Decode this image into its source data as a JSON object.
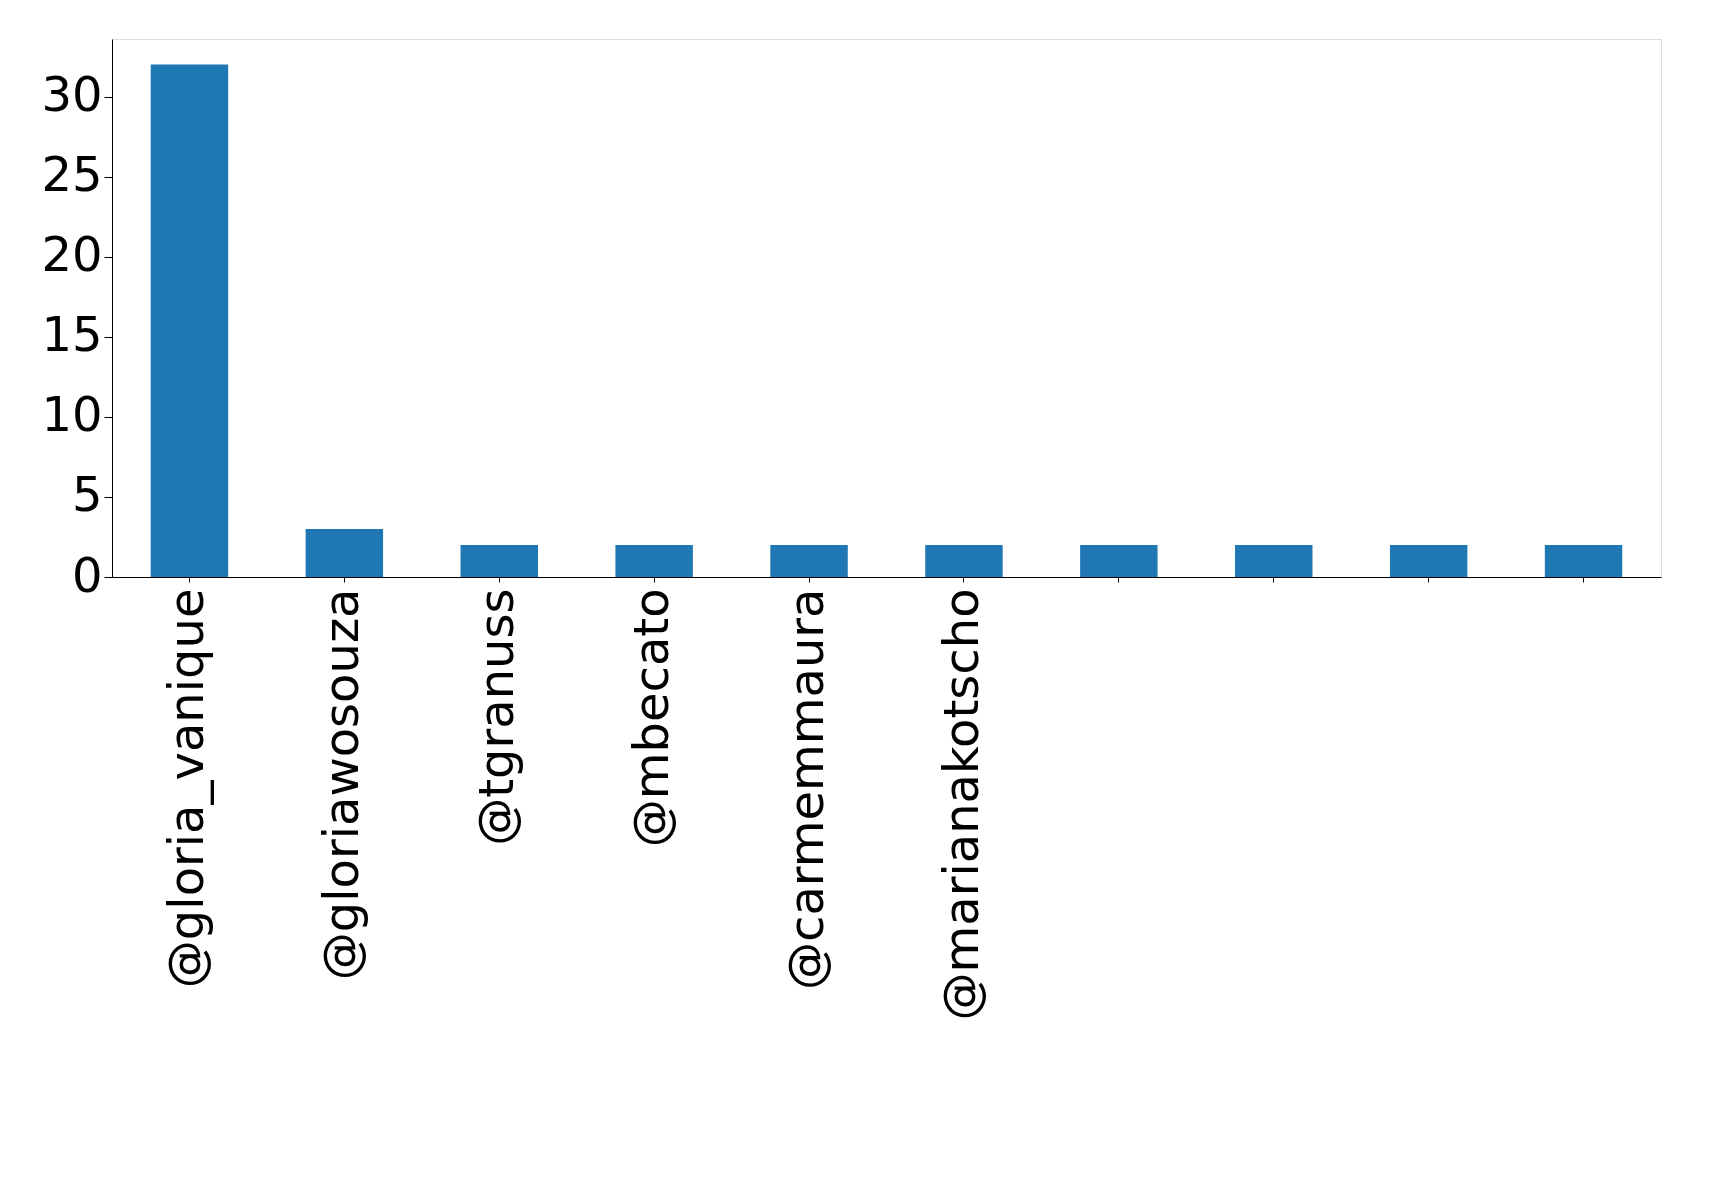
{
  "chart_data": {
    "type": "bar",
    "categories": [
      "@gloria_vanique",
      "@gloriawosouza",
      "@tgranuss",
      "@mbecato",
      "@carmemmaura",
      "@marianakotscho",
      null,
      null,
      null,
      null
    ],
    "values": [
      32,
      3,
      2,
      2,
      2,
      2,
      2,
      2,
      2,
      2
    ],
    "color": "#1f77b4",
    "ylim": [
      0,
      33.6
    ],
    "yticks": [
      0,
      5,
      10,
      15,
      20,
      25,
      30
    ],
    "grid": false
  }
}
